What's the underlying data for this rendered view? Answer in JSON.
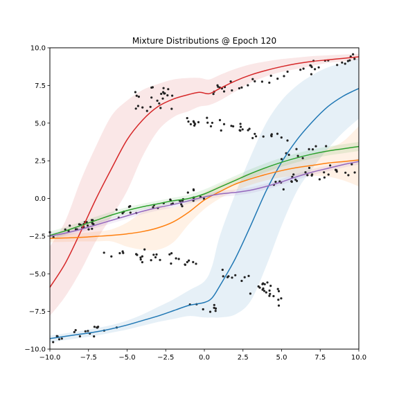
{
  "chart_data": {
    "type": "line",
    "title": "Mixture Distributions @ Epoch 120",
    "xlabel": "",
    "ylabel": "",
    "xlim": [
      -10,
      10
    ],
    "ylim": [
      -10,
      10
    ],
    "xticks": [
      -10,
      -7.5,
      -5,
      -2.5,
      0,
      2.5,
      5,
      7.5,
      10
    ],
    "yticks": [
      -10,
      -7.5,
      -5,
      -2.5,
      0,
      2.5,
      5,
      7.5,
      10
    ],
    "xtick_labels": [
      "−10.0",
      "−7.5",
      "−5.0",
      "−2.5",
      "0.0",
      "2.5",
      "5.0",
      "7.5",
      "10.0"
    ],
    "ytick_labels": [
      "−10.0",
      "−7.5",
      "−5.0",
      "−2.5",
      "0.0",
      "2.5",
      "5.0",
      "7.5",
      "10.0"
    ],
    "grid": false,
    "legend": "none",
    "series": [
      {
        "color": "#d62728",
        "x": [
          -10,
          -9,
          -8,
          -7,
          -6,
          -5,
          -4,
          -3,
          -2,
          -1,
          -0.3,
          0.3,
          1,
          2,
          3,
          4,
          5,
          6,
          7,
          8,
          9,
          10
        ],
        "y": [
          -5.9,
          -4.3,
          -2.2,
          0.0,
          2.0,
          3.9,
          5.2,
          6.1,
          6.6,
          6.9,
          7.05,
          6.95,
          7.3,
          7.8,
          8.2,
          8.5,
          8.75,
          8.95,
          9.1,
          9.2,
          9.3,
          9.4
        ],
        "band_upper": [
          -3.2,
          -1.5,
          1.2,
          3.5,
          5.5,
          6.5,
          7.2,
          7.6,
          7.9,
          8.0,
          8.0,
          7.9,
          8.2,
          8.6,
          8.9,
          9.1,
          9.25,
          9.35,
          9.45,
          9.5,
          9.55,
          9.6
        ],
        "band_lower": [
          -7.8,
          -6.5,
          -4.8,
          -2.8,
          -1.2,
          0.5,
          2.8,
          4.5,
          5.4,
          5.8,
          6.1,
          6.2,
          6.5,
          7.1,
          7.7,
          8.1,
          8.4,
          8.6,
          8.8,
          9.0,
          9.1,
          9.2
        ]
      },
      {
        "color": "#1f77b4",
        "x": [
          -10,
          -9,
          -8,
          -7,
          -6,
          -5,
          -4,
          -3,
          -2,
          -1,
          0,
          0.5,
          1,
          2,
          3,
          4,
          5,
          6,
          7,
          8,
          9,
          10
        ],
        "y": [
          -9.3,
          -9.15,
          -9.0,
          -8.85,
          -8.65,
          -8.4,
          -8.1,
          -7.8,
          -7.45,
          -7.1,
          -6.9,
          -6.6,
          -5.8,
          -4.0,
          -1.8,
          0.5,
          2.4,
          3.9,
          5.1,
          6.1,
          6.8,
          7.3
        ],
        "band_upper": [
          -9.1,
          -8.95,
          -8.8,
          -8.6,
          -8.4,
          -8.1,
          -7.7,
          -7.2,
          -6.7,
          -6.1,
          -5.5,
          -4.5,
          -2.5,
          0.3,
          2.8,
          5.0,
          6.5,
          7.5,
          8.2,
          8.7,
          9.0,
          9.3
        ],
        "band_lower": [
          -9.55,
          -9.4,
          -9.25,
          -9.1,
          -8.9,
          -8.7,
          -8.45,
          -8.2,
          -8.0,
          -7.8,
          -7.9,
          -7.9,
          -7.9,
          -7.7,
          -6.8,
          -4.5,
          -1.8,
          0.5,
          2.0,
          3.3,
          4.4,
          5.3
        ]
      },
      {
        "color": "#ff7f0e",
        "x": [
          -10,
          -9,
          -8,
          -7,
          -6,
          -5,
          -4,
          -3,
          -2,
          -1,
          0,
          1,
          2,
          3,
          4,
          5,
          6,
          7,
          8,
          9,
          10
        ],
        "y": [
          -2.65,
          -2.62,
          -2.58,
          -2.52,
          -2.45,
          -2.35,
          -2.2,
          -1.95,
          -1.55,
          -0.9,
          -0.1,
          0.45,
          0.95,
          1.3,
          1.6,
          1.85,
          2.05,
          2.2,
          2.35,
          2.45,
          2.55
        ],
        "band_upper": [
          -2.4,
          -2.35,
          -2.3,
          -2.2,
          -2.05,
          -1.6,
          -0.9,
          -0.5,
          -0.6,
          -0.2,
          0.4,
          0.9,
          1.35,
          1.7,
          2.0,
          2.3,
          2.6,
          2.9,
          3.3,
          3.8,
          4.8
        ],
        "band_lower": [
          -2.9,
          -2.88,
          -2.85,
          -2.85,
          -2.85,
          -3.2,
          -3.4,
          -3.4,
          -2.9,
          -1.7,
          -0.7,
          0.0,
          0.5,
          0.9,
          1.2,
          1.4,
          1.5,
          1.5,
          1.45,
          1.2,
          0.8
        ]
      },
      {
        "color": "#2ca02c",
        "x": [
          -10,
          -9,
          -8,
          -7,
          -6,
          -5,
          -4,
          -3,
          -2,
          -1,
          0,
          1,
          2,
          3,
          4,
          5,
          6,
          7,
          8,
          9,
          10
        ],
        "y": [
          -2.45,
          -2.15,
          -1.8,
          -1.45,
          -1.1,
          -0.8,
          -0.55,
          -0.35,
          -0.15,
          0.0,
          0.3,
          0.75,
          1.2,
          1.65,
          2.05,
          2.4,
          2.7,
          2.95,
          3.15,
          3.3,
          3.45
        ],
        "band_upper": [
          -2.2,
          -1.9,
          -1.55,
          -1.2,
          -0.88,
          -0.58,
          -0.35,
          -0.15,
          0.05,
          0.25,
          0.6,
          1.05,
          1.5,
          1.95,
          2.35,
          2.7,
          3.0,
          3.25,
          3.45,
          3.6,
          3.75
        ],
        "band_lower": [
          -2.7,
          -2.4,
          -2.05,
          -1.7,
          -1.32,
          -1.02,
          -0.75,
          -0.55,
          -0.35,
          -0.25,
          0.0,
          0.45,
          0.9,
          1.35,
          1.75,
          2.1,
          2.4,
          2.65,
          2.85,
          3.0,
          3.15
        ]
      },
      {
        "color": "#9467bd",
        "x": [
          -10,
          -9,
          -8,
          -7,
          -6,
          -5,
          -4,
          -3,
          -2,
          -1,
          0,
          1,
          2,
          3,
          4,
          5,
          6,
          7,
          8,
          9,
          10
        ],
        "y": [
          -2.5,
          -2.3,
          -2.05,
          -1.75,
          -1.45,
          -1.15,
          -0.85,
          -0.6,
          -0.4,
          -0.15,
          0.1,
          0.3,
          0.4,
          0.55,
          0.8,
          1.1,
          1.45,
          1.75,
          2.0,
          2.25,
          2.45
        ],
        "band_upper": [
          -2.3,
          -2.1,
          -1.85,
          -1.55,
          -1.25,
          -0.95,
          -0.65,
          -0.4,
          -0.2,
          0.05,
          0.3,
          0.5,
          0.6,
          0.75,
          1.0,
          1.3,
          1.65,
          1.95,
          2.2,
          2.45,
          2.65
        ],
        "band_lower": [
          -2.7,
          -2.5,
          -2.25,
          -1.95,
          -1.65,
          -1.35,
          -1.05,
          -0.8,
          -0.6,
          -0.35,
          -0.1,
          0.1,
          0.2,
          0.35,
          0.6,
          0.9,
          1.25,
          1.55,
          1.8,
          2.05,
          2.25
        ]
      }
    ]
  }
}
